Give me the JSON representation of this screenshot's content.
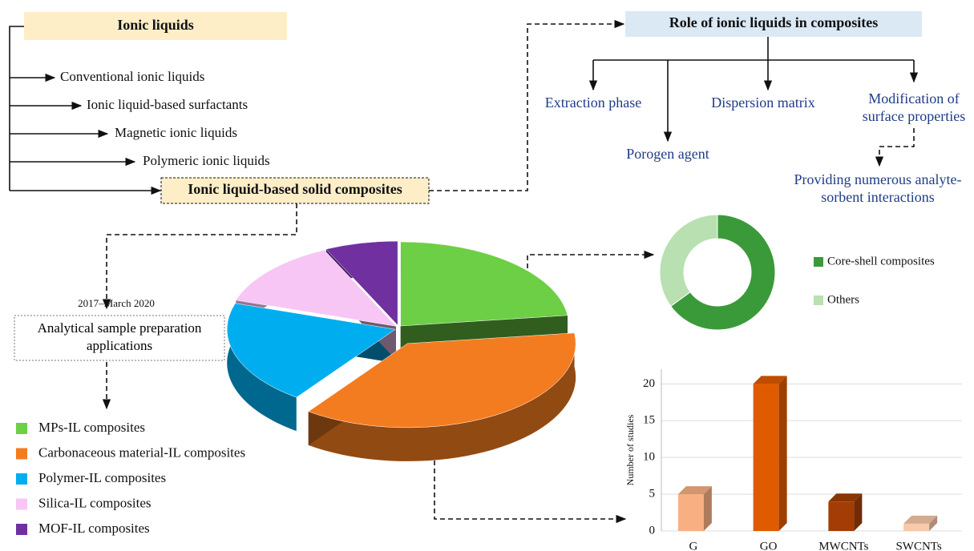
{
  "ionic_liquids": {
    "title": "Ionic liquids",
    "types": [
      "Conventional ionic liquids",
      "Ionic liquid-based surfactants",
      "Magnetic ionic liquids",
      "Polymeric ionic liquids"
    ],
    "composites": "Ionic liquid-based solid composites"
  },
  "roles": {
    "title": "Role of ionic liquids in composites",
    "items": [
      "Extraction phase",
      "Porogen agent",
      "Dispersion matrix",
      "Modification of surface properties"
    ],
    "outcome": "Providing numerous analyte-sorbent interactions"
  },
  "period": "2017–March 2020",
  "applications": "Analytical sample preparation applications",
  "chart_data": [
    {
      "type": "pie",
      "categories": [
        "MPs-IL composites",
        "Carbonaceous material-IL composites",
        "Polymer-IL composites",
        "Silica-IL composites",
        "MOF-IL composites"
      ],
      "values": [
        23,
        37,
        20,
        13,
        7
      ],
      "colors": [
        "#6ccf45",
        "#f47c20",
        "#00aeef",
        "#f7c6f5",
        "#7030a0"
      ]
    },
    {
      "type": "donut",
      "categories": [
        "Core-shell composites",
        "Others"
      ],
      "values": [
        65,
        35
      ],
      "colors": [
        "#3a9a3a",
        "#b8e0b0"
      ]
    },
    {
      "type": "bar",
      "y_label": "Number of studies",
      "categories": [
        "G",
        "GO",
        "MWCNTs",
        "SWCNTs"
      ],
      "values": [
        5,
        20,
        4,
        1
      ],
      "colors": [
        "#f8b083",
        "#e05a00",
        "#a33d05",
        "#f9c9ab"
      ],
      "ylim": [
        0,
        22
      ],
      "yticks": [
        0,
        5,
        10,
        15,
        20
      ],
      "grid": true
    }
  ]
}
